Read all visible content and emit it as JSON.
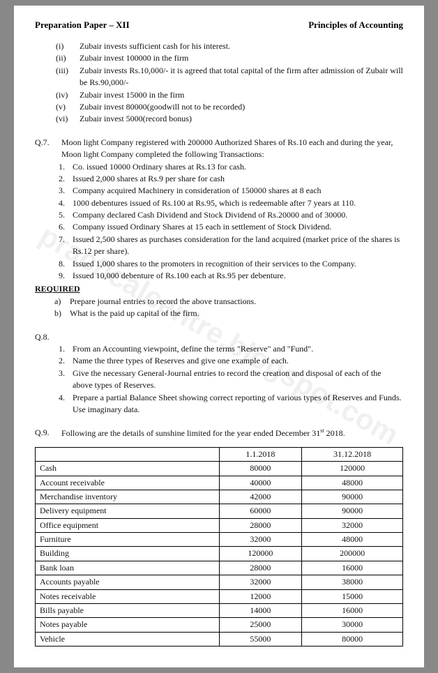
{
  "header": {
    "left": "Preparation Paper – XII",
    "right": "Principles of Accounting"
  },
  "watermark": "practicalcentre.blogspot.com",
  "zubair_items": [
    {
      "num": "(i)",
      "text": "Zubair invests sufficient cash for his interest."
    },
    {
      "num": "(ii)",
      "text": "Zubair invest 100000 in the firm"
    },
    {
      "num": "(iii)",
      "text": "Zubair invests Rs.10,000/- it is agreed that total capital of the firm after admission of Zubair will be Rs.90,000/-"
    },
    {
      "num": "(iv)",
      "text": "Zubair invest 15000 in the firm"
    },
    {
      "num": "(v)",
      "text": "Zubair invest 80000(goodwill not to be recorded)"
    },
    {
      "num": "(vi)",
      "text": "Zubair invest 5000(record bonus)"
    }
  ],
  "q7": {
    "label": "Q.7.",
    "intro": "Moon light Company registered with 200000 Authorized Shares of Rs.10 each and during the year, Moon light Company completed the following Transactions:",
    "items": [
      "Co. issued 10000 Ordinary shares at Rs.13 for cash.",
      "Issued 2,000 shares at Rs.9 per share for cash",
      "Company acquired Machinery in consideration of 150000 shares at 8 each",
      "1000 debentures issued of Rs.100 at Rs.95, which is redeemable after 7 years at 110.",
      "Company declared Cash Dividend and Stock Dividend of Rs.20000 and of 30000.",
      "Company issued Ordinary Shares at 15 each in settlement of Stock Dividend.",
      "Issued 2,500 shares as purchases consideration for the land acquired (market price of the shares is Rs.12 per share).",
      "Issued 1,000 shares to the promoters in recognition of their services to the Company.",
      "Issued 10,000 debenture of Rs.100 each at Rs.95 per debenture."
    ],
    "required_label": "REQUIRED",
    "required": [
      {
        "n": "a)",
        "t": "Prepare journal entries to record the above transactions."
      },
      {
        "n": "b)",
        "t": "What is the paid up capital of the firm."
      }
    ]
  },
  "q8": {
    "label": "Q.8.",
    "items": [
      "From an Accounting viewpoint, define the terms \"Reserve\" and \"Fund\".",
      "Name the three types of Reserves and give one example of each.",
      "Give the necessary General-Journal entries to record the creation and disposal of each of the above types of Reserves.",
      "Prepare a partial Balance Sheet showing correct reporting of various types of Reserves and Funds. Use imaginary data."
    ]
  },
  "q9": {
    "label": "Q.9.",
    "intro": "Following are the details of sunshine limited for the year ended December 31",
    "sup": "st",
    "year": " 2018.",
    "columns": [
      "",
      "1.1.2018",
      "31.12.2018"
    ],
    "rows": [
      [
        "Cash",
        "80000",
        "120000"
      ],
      [
        "Account receivable",
        "40000",
        "48000"
      ],
      [
        "Merchandise inventory",
        "42000",
        "90000"
      ],
      [
        "Delivery equipment",
        "60000",
        "90000"
      ],
      [
        "Office equipment",
        "28000",
        "32000"
      ],
      [
        "Furniture",
        "32000",
        "48000"
      ],
      [
        "Building",
        "120000",
        "200000"
      ],
      [
        "Bank loan",
        "28000",
        "16000"
      ],
      [
        "Accounts payable",
        "32000",
        "38000"
      ],
      [
        "Notes receivable",
        "12000",
        "15000"
      ],
      [
        "Bills payable",
        "14000",
        "16000"
      ],
      [
        "Notes payable",
        "25000",
        "30000"
      ],
      [
        "Vehicle",
        "55000",
        "80000"
      ]
    ]
  }
}
